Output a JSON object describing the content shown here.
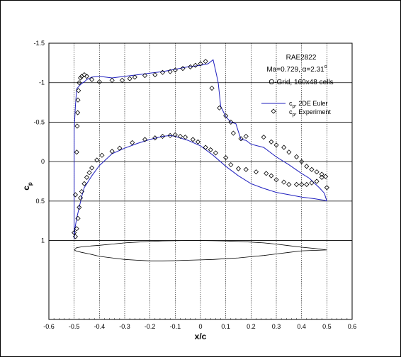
{
  "chart_data": {
    "type": "line",
    "xlabel": "x/c",
    "ylabel": "c_p",
    "xlim": [
      -0.6,
      0.6
    ],
    "ylim": [
      1.5,
      -1.5
    ],
    "y_inverted": true,
    "grid": true,
    "x_ticks": [
      "-0.6",
      "-0.5",
      "-0.4",
      "-0.3",
      "-0.2",
      "-0.1",
      "0",
      "0.1",
      "0.2",
      "0.3",
      "0.4",
      "0.5",
      "0.6"
    ],
    "y_ticks": [
      "-1.5",
      "-1",
      "-0.5",
      "0",
      "0.5",
      "1"
    ],
    "annotations": {
      "title": "RAE2822",
      "condition_text": "Ma=0.729, ",
      "alpha_symbol": "α",
      "alpha_text": "=2.31",
      "alpha_deg": "o",
      "grid_note": "O-Grid, 160x48 cells"
    },
    "legend_placement": "upper-right",
    "legend": [
      {
        "prefix": "c",
        "sub": "p",
        "text": ", 2DE Euler",
        "style": "line",
        "color": "#1f1fbf"
      },
      {
        "prefix": "c",
        "sub": "p",
        "text": ", Experiment",
        "style": "diamond",
        "color": "#000000"
      }
    ],
    "series": [
      {
        "name": "cp, 2DE Euler",
        "style": "line",
        "color": "#1f1fbf",
        "x": [
          0.5,
          0.49,
          0.47,
          0.45,
          0.43,
          0.4,
          0.35,
          0.3,
          0.25,
          0.2,
          0.18,
          0.16,
          0.15,
          0.14,
          0.12,
          0.1,
          0.08,
          0.07,
          0.06,
          0.05,
          0.03,
          0.0,
          -0.05,
          -0.1,
          -0.15,
          -0.2,
          -0.25,
          -0.3,
          -0.35,
          -0.4,
          -0.43,
          -0.45,
          -0.46,
          -0.47,
          -0.48,
          -0.49,
          -0.495,
          -0.5,
          -0.5,
          -0.497,
          -0.49,
          -0.48,
          -0.47,
          -0.46,
          -0.45,
          -0.43,
          -0.4,
          -0.35,
          -0.3,
          -0.25,
          -0.2,
          -0.15,
          -0.12,
          -0.1,
          -0.05,
          0.0,
          0.05,
          0.1,
          0.15,
          0.2,
          0.25,
          0.3,
          0.35,
          0.4,
          0.45,
          0.47,
          0.49,
          0.5
        ],
        "y": [
          0.5,
          0.4,
          0.33,
          0.27,
          0.21,
          0.15,
          0.04,
          -0.06,
          -0.18,
          -0.22,
          -0.27,
          -0.28,
          -0.38,
          -0.48,
          -0.5,
          -0.57,
          -0.7,
          -1.0,
          -1.15,
          -1.29,
          -1.24,
          -1.22,
          -1.2,
          -1.17,
          -1.14,
          -1.12,
          -1.1,
          -1.08,
          -1.06,
          -1.08,
          -1.07,
          -1.04,
          -1.01,
          -0.99,
          -0.96,
          -0.92,
          -0.7,
          -0.4,
          0.98,
          0.85,
          0.72,
          0.58,
          0.44,
          0.33,
          0.28,
          0.18,
          0.05,
          -0.1,
          -0.17,
          -0.23,
          -0.28,
          -0.32,
          -0.33,
          -0.32,
          -0.27,
          -0.2,
          -0.08,
          0.06,
          0.18,
          0.28,
          0.34,
          0.39,
          0.42,
          0.45,
          0.47,
          0.48,
          0.49,
          0.5
        ]
      },
      {
        "name": "cp, Experiment",
        "style": "diamond",
        "color": "#000000",
        "x": [
          -0.5,
          -0.495,
          -0.49,
          -0.488,
          -0.486,
          -0.485,
          -0.483,
          -0.48,
          -0.475,
          -0.47,
          -0.46,
          -0.45,
          -0.43,
          -0.4,
          -0.35,
          -0.31,
          -0.28,
          -0.26,
          -0.22,
          -0.18,
          -0.15,
          -0.12,
          -0.1,
          -0.07,
          -0.04,
          -0.02,
          0.0,
          0.02,
          0.045,
          0.075,
          0.1,
          0.12,
          0.13,
          0.16,
          0.18,
          0.25,
          0.28,
          0.3,
          0.33,
          0.35,
          0.38,
          0.4,
          0.42,
          0.44,
          0.46,
          0.48,
          0.495,
          -0.495,
          -0.49,
          -0.485,
          -0.48,
          -0.475,
          -0.47,
          -0.46,
          -0.45,
          -0.44,
          -0.43,
          -0.41,
          -0.39,
          -0.35,
          -0.32,
          -0.27,
          -0.22,
          -0.18,
          -0.15,
          -0.12,
          -0.1,
          -0.08,
          -0.06,
          -0.03,
          -0.01,
          0.02,
          0.04,
          0.06,
          0.1,
          0.12,
          0.15,
          0.18,
          0.22,
          0.26,
          0.28,
          0.3,
          0.33,
          0.35,
          0.38,
          0.4,
          0.42,
          0.44,
          0.46,
          0.48,
          0.5
        ],
        "y": [
          0.9,
          0.42,
          -0.12,
          -0.45,
          -0.62,
          -0.78,
          -0.9,
          -1.0,
          -1.06,
          -1.08,
          -1.1,
          -1.08,
          -1.04,
          -1.01,
          -1.03,
          -1.03,
          -1.05,
          -1.07,
          -1.09,
          -1.1,
          -1.13,
          -1.14,
          -1.16,
          -1.18,
          -1.2,
          -1.22,
          -1.24,
          -1.27,
          -0.93,
          -0.68,
          -0.58,
          -0.5,
          -0.36,
          -0.29,
          -0.32,
          -0.31,
          -0.25,
          -0.21,
          -0.18,
          -0.12,
          -0.06,
          0.0,
          0.06,
          0.1,
          0.13,
          0.16,
          0.19,
          0.95,
          0.85,
          0.72,
          0.58,
          0.46,
          0.38,
          0.28,
          0.2,
          0.14,
          0.08,
          -0.02,
          -0.08,
          -0.13,
          -0.17,
          -0.24,
          -0.28,
          -0.3,
          -0.32,
          -0.33,
          -0.34,
          -0.32,
          -0.31,
          -0.28,
          -0.25,
          -0.18,
          -0.15,
          -0.11,
          -0.05,
          0.04,
          0.09,
          0.1,
          0.13,
          0.15,
          0.18,
          0.23,
          0.26,
          0.29,
          0.29,
          0.29,
          0.29,
          0.27,
          0.25,
          0.2,
          0.33
        ]
      },
      {
        "name": "airfoil",
        "style": "thin-line",
        "color": "#000000",
        "x": [
          -0.5,
          -0.49,
          -0.47,
          -0.44,
          -0.4,
          -0.35,
          -0.3,
          -0.25,
          -0.2,
          -0.15,
          -0.1,
          -0.05,
          0.0,
          0.05,
          0.1,
          0.15,
          0.2,
          0.25,
          0.3,
          0.35,
          0.4,
          0.45,
          0.5,
          0.45,
          0.4,
          0.35,
          0.3,
          0.25,
          0.2,
          0.15,
          0.1,
          0.05,
          0.0,
          -0.05,
          -0.1,
          -0.15,
          -0.2,
          -0.25,
          -0.3,
          -0.35,
          -0.4,
          -0.44,
          -0.47,
          -0.49,
          -0.5
        ],
        "y": [
          1.12,
          1.09,
          1.08,
          1.07,
          1.06,
          1.045,
          1.03,
          1.02,
          1.012,
          1.005,
          1.002,
          1.0,
          1.0,
          1.002,
          1.006,
          1.012,
          1.02,
          1.03,
          1.045,
          1.065,
          1.085,
          1.1,
          1.12,
          1.125,
          1.13,
          1.15,
          1.17,
          1.19,
          1.205,
          1.22,
          1.23,
          1.24,
          1.245,
          1.25,
          1.255,
          1.258,
          1.258,
          1.25,
          1.24,
          1.22,
          1.2,
          1.17,
          1.15,
          1.135,
          1.12
        ]
      }
    ]
  }
}
